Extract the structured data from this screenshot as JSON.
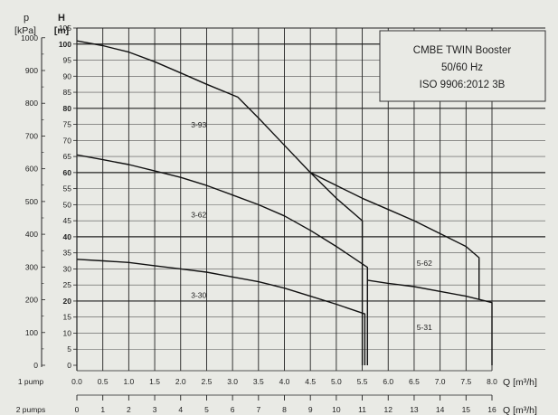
{
  "chart_data": {
    "type": "line",
    "left_axis": {
      "label": "p",
      "unit": "[kPa]",
      "ticks": [
        0,
        100,
        200,
        300,
        400,
        500,
        600,
        700,
        800,
        900,
        1000
      ]
    },
    "y_axis": {
      "label": "H",
      "unit": "[m]",
      "ylim": [
        0,
        105
      ],
      "ticks": [
        0,
        5,
        10,
        15,
        20,
        25,
        30,
        35,
        40,
        45,
        50,
        55,
        60,
        65,
        70,
        75,
        80,
        85,
        90,
        95,
        100,
        105
      ],
      "major": [
        20,
        40,
        60,
        80,
        100
      ]
    },
    "x_axis_1pump": {
      "row_label": "1 pump",
      "unit": "Q [m³/h]",
      "xlim": [
        0,
        8.0
      ],
      "ticks": [
        "0.0",
        "0.5",
        "1.0",
        "1.5",
        "2.0",
        "2.5",
        "3.0",
        "3.5",
        "4.0",
        "4.5",
        "5.0",
        "5.5",
        "6.0",
        "6.5",
        "7.0",
        "7.5",
        "8.0"
      ]
    },
    "x_axis_2pumps": {
      "row_label": "2 pumps",
      "unit": "Q [m³/h]",
      "ticks": [
        "0",
        "1",
        "2",
        "3",
        "4",
        "5",
        "6",
        "7",
        "8",
        "9",
        "10",
        "11",
        "12",
        "13",
        "14",
        "15",
        "16"
      ]
    },
    "grid": true,
    "info_box": {
      "lines": [
        "CMBE TWIN Booster",
        "50/60 Hz",
        "ISO 9906:2012 3B"
      ],
      "placement": "top-right"
    },
    "series": [
      {
        "name": "3-93",
        "points": [
          [
            0,
            101
          ],
          [
            0.5,
            99.5
          ],
          [
            1.0,
            97.5
          ],
          [
            1.5,
            94.5
          ],
          [
            2.0,
            91
          ],
          [
            2.5,
            87.5
          ],
          [
            3.1,
            83.5
          ],
          [
            3.5,
            77
          ],
          [
            4.0,
            68.5
          ],
          [
            4.5,
            60
          ],
          [
            5.0,
            52
          ],
          [
            5.5,
            45
          ],
          [
            5.5,
            0
          ]
        ]
      },
      {
        "name": "3-62",
        "points": [
          [
            0,
            65.5
          ],
          [
            0.5,
            64
          ],
          [
            1.0,
            62.5
          ],
          [
            1.5,
            60.5
          ],
          [
            2.0,
            58.5
          ],
          [
            2.5,
            56
          ],
          [
            3.0,
            53
          ],
          [
            3.5,
            50
          ],
          [
            4.0,
            46.5
          ],
          [
            4.5,
            42
          ],
          [
            5.0,
            37
          ],
          [
            5.6,
            30.5
          ],
          [
            5.6,
            0
          ]
        ]
      },
      {
        "name": "3-30",
        "points": [
          [
            0,
            33
          ],
          [
            0.5,
            32.5
          ],
          [
            1.0,
            32
          ],
          [
            1.5,
            31
          ],
          [
            2.0,
            30
          ],
          [
            2.5,
            29
          ],
          [
            3.0,
            27.5
          ],
          [
            3.5,
            26
          ],
          [
            4.0,
            24
          ],
          [
            4.5,
            21.5
          ],
          [
            5.0,
            19
          ],
          [
            5.55,
            16
          ],
          [
            5.55,
            0
          ]
        ]
      },
      {
        "name": "5-62",
        "points": [
          [
            4.5,
            60
          ],
          [
            5.0,
            56
          ],
          [
            5.5,
            52
          ],
          [
            6.0,
            48.5
          ],
          [
            6.5,
            45
          ],
          [
            7.0,
            41
          ],
          [
            7.5,
            37
          ],
          [
            7.75,
            33.5
          ],
          [
            7.75,
            20.5
          ]
        ]
      },
      {
        "name": "5-31",
        "points": [
          [
            5.6,
            26.5
          ],
          [
            6.0,
            25.5
          ],
          [
            6.5,
            24.5
          ],
          [
            7.0,
            23
          ],
          [
            7.5,
            21.5
          ],
          [
            8.0,
            19.5
          ],
          [
            8.0,
            0
          ]
        ]
      }
    ],
    "curve_labels": [
      {
        "text": "3-93",
        "x": 2.2,
        "y": 74
      },
      {
        "text": "3-62",
        "x": 2.2,
        "y": 46
      },
      {
        "text": "3-30",
        "x": 2.2,
        "y": 21
      },
      {
        "text": "5-62",
        "x": 6.55,
        "y": 31
      },
      {
        "text": "5-31",
        "x": 6.55,
        "y": 11
      }
    ]
  }
}
